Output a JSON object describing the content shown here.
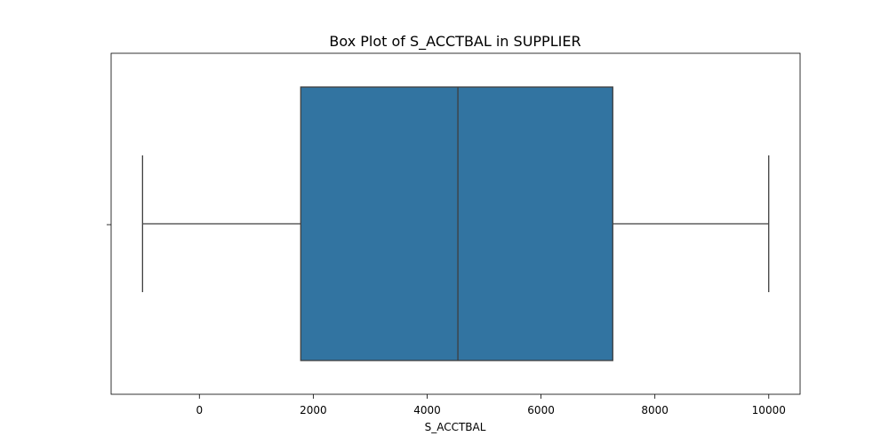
{
  "chart_data": {
    "type": "box",
    "title": "Box Plot of S_ACCTBAL in SUPPLIER",
    "xlabel": "S_ACCTBAL",
    "ylabel": "",
    "xlim": [
      -1550,
      10550
    ],
    "xticks": [
      0,
      2000,
      4000,
      6000,
      8000,
      10000
    ],
    "xtick_labels": [
      "0",
      "2000",
      "4000",
      "6000",
      "8000",
      "10000"
    ],
    "grid": false,
    "box": {
      "whisker_low": -998,
      "q1": 1780,
      "median": 4540,
      "q3": 7260,
      "whisker_high": 9999
    },
    "colors": {
      "box_fill": "#3274a1",
      "line": "#3f3f3f",
      "frame": "#000000"
    }
  }
}
